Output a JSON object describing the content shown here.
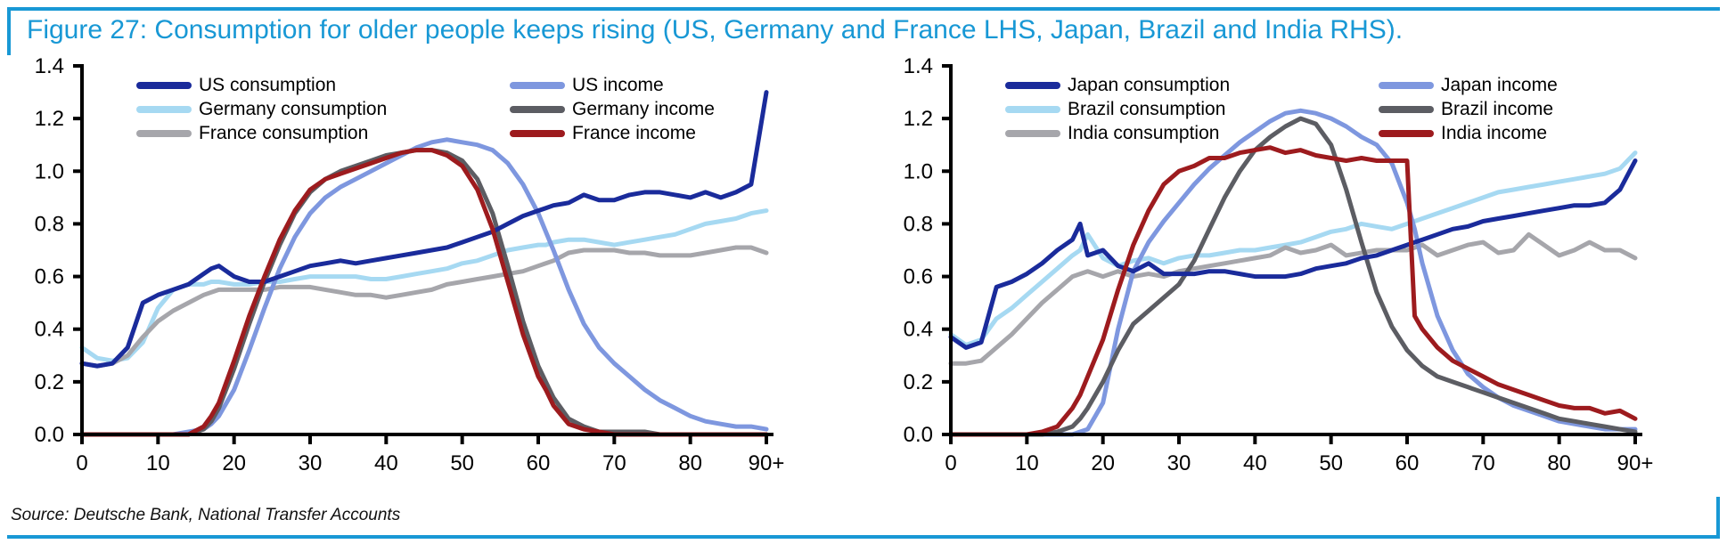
{
  "figure": {
    "title": "Figure 27: Consumption for older people keeps rising (US, Germany and France LHS, Japan, Brazil and India RHS).",
    "source": "Source: Deutsche Bank, National Transfer Accounts",
    "accent_color": "#1898D5",
    "axis_color": "#000000"
  },
  "chart_data": [
    {
      "type": "line",
      "position": "LHS",
      "title": "",
      "xlabel": "",
      "ylabel": "",
      "ylim": [
        0,
        1.4
      ],
      "grid": false,
      "legend_position": "top-inside-two-columns",
      "x": [
        0,
        2,
        4,
        6,
        8,
        10,
        12,
        14,
        16,
        17,
        18,
        20,
        22,
        24,
        26,
        28,
        30,
        32,
        34,
        36,
        38,
        40,
        42,
        44,
        46,
        48,
        50,
        52,
        54,
        56,
        58,
        60,
        61,
        62,
        64,
        66,
        68,
        70,
        72,
        74,
        76,
        78,
        80,
        82,
        84,
        86,
        88,
        90
      ],
      "x_tick_values": [
        0,
        10,
        20,
        30,
        40,
        50,
        60,
        70,
        80,
        90
      ],
      "x_tick_labels": [
        "0",
        "10",
        "20",
        "30",
        "40",
        "50",
        "60",
        "70",
        "80",
        "90+"
      ],
      "y_tick_values": [
        0,
        0.2,
        0.4,
        0.6,
        0.8,
        1.0,
        1.2,
        1.4
      ],
      "y_tick_labels": [
        "0.0",
        "0.2",
        "0.4",
        "0.6",
        "0.8",
        "1.0",
        "1.2",
        "1.4"
      ],
      "series": [
        {
          "name": "Germany consumption",
          "color": "#A6D9F2",
          "values": [
            0.33,
            0.29,
            0.28,
            0.29,
            0.35,
            0.48,
            0.55,
            0.57,
            0.57,
            0.58,
            0.58,
            0.57,
            0.57,
            0.58,
            0.58,
            0.59,
            0.6,
            0.6,
            0.6,
            0.6,
            0.59,
            0.59,
            0.6,
            0.61,
            0.62,
            0.63,
            0.65,
            0.66,
            0.68,
            0.7,
            0.71,
            0.72,
            0.72,
            0.73,
            0.74,
            0.74,
            0.73,
            0.72,
            0.73,
            0.74,
            0.75,
            0.76,
            0.78,
            0.8,
            0.81,
            0.82,
            0.84,
            0.85
          ]
        },
        {
          "name": "France consumption",
          "color": "#A6A6AB",
          "values": [
            0.27,
            0.26,
            0.27,
            0.3,
            0.37,
            0.43,
            0.47,
            0.5,
            0.53,
            0.54,
            0.55,
            0.55,
            0.55,
            0.55,
            0.56,
            0.56,
            0.56,
            0.55,
            0.54,
            0.53,
            0.53,
            0.52,
            0.53,
            0.54,
            0.55,
            0.57,
            0.58,
            0.59,
            0.6,
            0.61,
            0.62,
            0.64,
            0.65,
            0.66,
            0.69,
            0.7,
            0.7,
            0.7,
            0.69,
            0.69,
            0.68,
            0.68,
            0.68,
            0.69,
            0.7,
            0.71,
            0.71,
            0.69
          ]
        },
        {
          "name": "US income",
          "color": "#7E97DF",
          "values": [
            0,
            0,
            0,
            0,
            0,
            0,
            0,
            0.01,
            0.02,
            0.04,
            0.07,
            0.17,
            0.32,
            0.48,
            0.63,
            0.75,
            0.84,
            0.9,
            0.94,
            0.97,
            1.0,
            1.03,
            1.06,
            1.09,
            1.11,
            1.12,
            1.11,
            1.1,
            1.08,
            1.03,
            0.95,
            0.84,
            0.77,
            0.7,
            0.55,
            0.42,
            0.33,
            0.27,
            0.22,
            0.17,
            0.13,
            0.1,
            0.07,
            0.05,
            0.04,
            0.03,
            0.03,
            0.02
          ]
        },
        {
          "name": "Germany income",
          "color": "#5C5D63",
          "values": [
            0,
            0,
            0,
            0,
            0,
            0,
            0,
            0,
            0.02,
            0.05,
            0.1,
            0.25,
            0.42,
            0.58,
            0.72,
            0.84,
            0.92,
            0.97,
            1.0,
            1.02,
            1.04,
            1.06,
            1.07,
            1.08,
            1.08,
            1.07,
            1.04,
            0.97,
            0.84,
            0.64,
            0.43,
            0.26,
            0.2,
            0.14,
            0.06,
            0.03,
            0.01,
            0.01,
            0.01,
            0.01,
            0,
            0,
            0,
            0,
            0,
            0,
            0,
            0
          ]
        },
        {
          "name": "US consumption",
          "color": "#1A2B9B",
          "values": [
            0.27,
            0.26,
            0.27,
            0.33,
            0.5,
            0.53,
            0.55,
            0.57,
            0.61,
            0.63,
            0.64,
            0.6,
            0.58,
            0.58,
            0.6,
            0.62,
            0.64,
            0.65,
            0.66,
            0.65,
            0.66,
            0.67,
            0.68,
            0.69,
            0.7,
            0.71,
            0.73,
            0.75,
            0.77,
            0.8,
            0.83,
            0.85,
            0.86,
            0.87,
            0.88,
            0.91,
            0.89,
            0.89,
            0.91,
            0.92,
            0.92,
            0.91,
            0.9,
            0.92,
            0.9,
            0.92,
            0.95,
            1.3
          ]
        },
        {
          "name": "France income",
          "color": "#9D1B1E",
          "values": [
            0,
            0,
            0,
            0,
            0,
            0,
            0,
            0,
            0.03,
            0.07,
            0.12,
            0.28,
            0.45,
            0.6,
            0.74,
            0.85,
            0.93,
            0.97,
            0.99,
            1.01,
            1.03,
            1.05,
            1.07,
            1.08,
            1.08,
            1.06,
            1.02,
            0.93,
            0.78,
            0.58,
            0.38,
            0.22,
            0.17,
            0.11,
            0.04,
            0.02,
            0.01,
            0,
            0,
            0,
            0,
            0,
            0,
            0,
            0,
            0,
            0,
            0
          ]
        }
      ],
      "legend_columns": [
        [
          "US consumption",
          "Germany consumption",
          "France consumption"
        ],
        [
          "US income",
          "Germany income",
          "France income"
        ]
      ]
    },
    {
      "type": "line",
      "position": "RHS",
      "title": "",
      "xlabel": "",
      "ylabel": "",
      "ylim": [
        0,
        1.4
      ],
      "grid": false,
      "legend_position": "top-inside-two-columns",
      "x": [
        0,
        2,
        4,
        6,
        8,
        10,
        12,
        14,
        16,
        17,
        18,
        20,
        22,
        24,
        26,
        28,
        30,
        32,
        34,
        36,
        38,
        40,
        42,
        44,
        46,
        48,
        50,
        52,
        54,
        56,
        58,
        60,
        61,
        62,
        64,
        66,
        68,
        70,
        72,
        74,
        76,
        78,
        80,
        82,
        84,
        86,
        88,
        90
      ],
      "x_tick_values": [
        0,
        10,
        20,
        30,
        40,
        50,
        60,
        70,
        80,
        90
      ],
      "x_tick_labels": [
        "0",
        "10",
        "20",
        "30",
        "40",
        "50",
        "60",
        "70",
        "80",
        "90+"
      ],
      "y_tick_values": [
        0,
        0.2,
        0.4,
        0.6,
        0.8,
        1.0,
        1.2,
        1.4
      ],
      "y_tick_labels": [
        "0.0",
        "0.2",
        "0.4",
        "0.6",
        "0.8",
        "1.0",
        "1.2",
        "1.4"
      ],
      "series": [
        {
          "name": "Brazil consumption",
          "color": "#A6D9F2",
          "values": [
            0.38,
            0.34,
            0.36,
            0.44,
            0.48,
            0.53,
            0.58,
            0.63,
            0.68,
            0.7,
            0.76,
            0.67,
            0.64,
            0.66,
            0.67,
            0.65,
            0.67,
            0.68,
            0.68,
            0.69,
            0.7,
            0.7,
            0.71,
            0.72,
            0.73,
            0.75,
            0.77,
            0.78,
            0.8,
            0.79,
            0.78,
            0.8,
            0.81,
            0.82,
            0.84,
            0.86,
            0.88,
            0.9,
            0.92,
            0.93,
            0.94,
            0.95,
            0.96,
            0.97,
            0.98,
            0.99,
            1.01,
            1.07
          ]
        },
        {
          "name": "India consumption",
          "color": "#A6A6AB",
          "values": [
            0.27,
            0.27,
            0.28,
            0.33,
            0.38,
            0.44,
            0.5,
            0.55,
            0.6,
            0.61,
            0.62,
            0.6,
            0.62,
            0.6,
            0.61,
            0.6,
            0.62,
            0.63,
            0.64,
            0.65,
            0.66,
            0.67,
            0.68,
            0.71,
            0.69,
            0.7,
            0.72,
            0.68,
            0.69,
            0.7,
            0.7,
            0.7,
            0.71,
            0.72,
            0.68,
            0.7,
            0.72,
            0.73,
            0.69,
            0.7,
            0.76,
            0.72,
            0.68,
            0.7,
            0.73,
            0.7,
            0.7,
            0.67
          ]
        },
        {
          "name": "Japan income",
          "color": "#7E97DF",
          "values": [
            0,
            0,
            0,
            0,
            0,
            0,
            0,
            0,
            0,
            0.01,
            0.02,
            0.12,
            0.4,
            0.62,
            0.73,
            0.81,
            0.88,
            0.95,
            1.01,
            1.06,
            1.11,
            1.15,
            1.19,
            1.22,
            1.23,
            1.22,
            1.2,
            1.17,
            1.13,
            1.1,
            1.03,
            0.88,
            0.78,
            0.65,
            0.45,
            0.32,
            0.23,
            0.18,
            0.14,
            0.11,
            0.09,
            0.07,
            0.05,
            0.04,
            0.03,
            0.02,
            0.02,
            0.02
          ]
        },
        {
          "name": "Brazil income",
          "color": "#5C5D63",
          "values": [
            0,
            0,
            0,
            0,
            0,
            0,
            0,
            0.01,
            0.03,
            0.06,
            0.1,
            0.2,
            0.32,
            0.42,
            0.47,
            0.52,
            0.57,
            0.66,
            0.78,
            0.9,
            1.0,
            1.08,
            1.13,
            1.17,
            1.2,
            1.18,
            1.1,
            0.93,
            0.73,
            0.54,
            0.41,
            0.32,
            0.29,
            0.26,
            0.22,
            0.2,
            0.18,
            0.16,
            0.14,
            0.12,
            0.1,
            0.08,
            0.06,
            0.05,
            0.04,
            0.03,
            0.02,
            0.01
          ]
        },
        {
          "name": "Japan consumption",
          "color": "#1A2B9B",
          "values": [
            0.37,
            0.33,
            0.35,
            0.56,
            0.58,
            0.61,
            0.65,
            0.7,
            0.74,
            0.8,
            0.68,
            0.7,
            0.64,
            0.62,
            0.65,
            0.61,
            0.61,
            0.61,
            0.62,
            0.62,
            0.61,
            0.6,
            0.6,
            0.6,
            0.61,
            0.63,
            0.64,
            0.65,
            0.67,
            0.68,
            0.7,
            0.72,
            0.73,
            0.74,
            0.76,
            0.78,
            0.79,
            0.81,
            0.82,
            0.83,
            0.84,
            0.85,
            0.86,
            0.87,
            0.87,
            0.88,
            0.93,
            1.04
          ]
        },
        {
          "name": "India income",
          "color": "#9D1B1E",
          "values": [
            0,
            0,
            0,
            0,
            0,
            0,
            0.01,
            0.03,
            0.1,
            0.15,
            0.22,
            0.36,
            0.55,
            0.72,
            0.85,
            0.95,
            1.0,
            1.02,
            1.05,
            1.05,
            1.07,
            1.08,
            1.09,
            1.07,
            1.08,
            1.06,
            1.05,
            1.04,
            1.05,
            1.04,
            1.04,
            1.04,
            0.45,
            0.4,
            0.33,
            0.28,
            0.25,
            0.22,
            0.19,
            0.17,
            0.15,
            0.13,
            0.11,
            0.1,
            0.1,
            0.08,
            0.09,
            0.06
          ]
        }
      ],
      "legend_columns": [
        [
          "Japan consumption",
          "Brazil consumption",
          "India consumption"
        ],
        [
          "Japan income",
          "Brazil income",
          "India income"
        ]
      ]
    }
  ]
}
